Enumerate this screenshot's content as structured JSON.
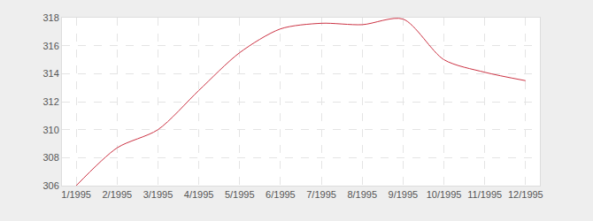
{
  "chart_data": {
    "type": "line",
    "categories": [
      "1/1995",
      "2/1995",
      "3/1995",
      "4/1995",
      "5/1995",
      "6/1995",
      "7/1995",
      "8/1995",
      "9/1995",
      "10/1995",
      "11/1995",
      "12/1995"
    ],
    "values": [
      306,
      308.7,
      310,
      312.8,
      315.5,
      317.2,
      317.6,
      317.5,
      317.9,
      315,
      314.1,
      313.5
    ],
    "color": "#cc3344",
    "line_style": "solid",
    "ylim": [
      306,
      318
    ],
    "yticks": [
      306,
      308,
      310,
      312,
      314,
      316,
      318
    ],
    "grid": true
  }
}
